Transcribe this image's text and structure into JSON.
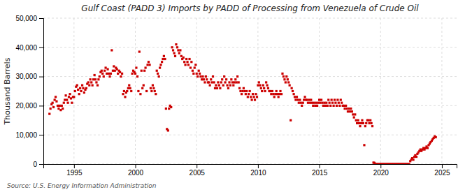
{
  "chart_data": {
    "type": "scatter",
    "title": "Gulf Coast (PADD 3) Imports by PADD of Processing from Venezuela of Crude Oil",
    "ylabel": "Thousand Barrels",
    "annotations": [
      "Source: U.S. Energy Information Administration"
    ],
    "color": "#cc0000",
    "marker": "square",
    "grid": true,
    "xlim": [
      1992.5,
      2026.2
    ],
    "xticks": [
      1995,
      2000,
      2005,
      2010,
      2015,
      2020,
      2025
    ],
    "ylim": [
      0,
      50000
    ],
    "yticks": [
      0,
      {
        "value": 10000,
        "label": "10,000"
      },
      {
        "value": 20000,
        "label": "20,000"
      },
      {
        "value": 30000,
        "label": "30,000"
      },
      {
        "value": 40000,
        "label": "40,000"
      },
      {
        "value": 50000,
        "label": "50,000"
      }
    ],
    "x": [
      1993.0,
      1993.08,
      1993.17,
      1993.25,
      1993.33,
      1993.42,
      1993.5,
      1993.58,
      1993.67,
      1993.75,
      1993.83,
      1993.92,
      1994.0,
      1994.08,
      1994.17,
      1994.25,
      1994.33,
      1994.42,
      1994.5,
      1994.58,
      1994.67,
      1994.75,
      1994.83,
      1994.92,
      1995.0,
      1995.08,
      1995.17,
      1995.25,
      1995.33,
      1995.42,
      1995.5,
      1995.58,
      1995.67,
      1995.75,
      1995.83,
      1995.92,
      1996.0,
      1996.08,
      1996.17,
      1996.25,
      1996.33,
      1996.42,
      1996.5,
      1996.58,
      1996.67,
      1996.75,
      1996.83,
      1996.92,
      1997.0,
      1997.08,
      1997.17,
      1997.25,
      1997.33,
      1997.42,
      1997.5,
      1997.58,
      1997.67,
      1997.75,
      1997.83,
      1997.92,
      1998.0,
      1998.08,
      1998.17,
      1998.25,
      1998.33,
      1998.42,
      1998.5,
      1998.58,
      1998.67,
      1998.75,
      1998.83,
      1998.92,
      1999.0,
      1999.08,
      1999.17,
      1999.25,
      1999.33,
      1999.42,
      1999.5,
      1999.58,
      1999.67,
      1999.75,
      1999.83,
      1999.92,
      2000.0,
      2000.08,
      2000.17,
      2000.25,
      2000.33,
      2000.42,
      2000.5,
      2000.58,
      2000.67,
      2000.75,
      2000.83,
      2000.92,
      2001.0,
      2001.08,
      2001.17,
      2001.25,
      2001.33,
      2001.42,
      2001.5,
      2001.58,
      2001.67,
      2001.75,
      2001.83,
      2001.92,
      2002.0,
      2002.08,
      2002.17,
      2002.25,
      2002.33,
      2002.42,
      2002.5,
      2002.58,
      2002.67,
      2002.75,
      2002.83,
      2002.92,
      2003.0,
      2003.08,
      2003.17,
      2003.25,
      2003.33,
      2003.42,
      2003.5,
      2003.58,
      2003.67,
      2003.75,
      2003.83,
      2003.92,
      2004.0,
      2004.08,
      2004.17,
      2004.25,
      2004.33,
      2004.42,
      2004.5,
      2004.58,
      2004.67,
      2004.75,
      2004.83,
      2004.92,
      2005.0,
      2005.08,
      2005.17,
      2005.25,
      2005.33,
      2005.42,
      2005.5,
      2005.58,
      2005.67,
      2005.75,
      2005.83,
      2005.92,
      2006.0,
      2006.08,
      2006.17,
      2006.25,
      2006.33,
      2006.42,
      2006.5,
      2006.58,
      2006.67,
      2006.75,
      2006.83,
      2006.92,
      2007.0,
      2007.08,
      2007.17,
      2007.25,
      2007.33,
      2007.42,
      2007.5,
      2007.58,
      2007.67,
      2007.75,
      2007.83,
      2007.92,
      2008.0,
      2008.08,
      2008.17,
      2008.25,
      2008.33,
      2008.42,
      2008.5,
      2008.58,
      2008.67,
      2008.75,
      2008.83,
      2008.92,
      2009.0,
      2009.08,
      2009.17,
      2009.25,
      2009.33,
      2009.42,
      2009.5,
      2009.58,
      2009.67,
      2009.75,
      2009.83,
      2009.92,
      2010.0,
      2010.08,
      2010.17,
      2010.25,
      2010.33,
      2010.42,
      2010.5,
      2010.58,
      2010.67,
      2010.75,
      2010.83,
      2010.92,
      2011.0,
      2011.08,
      2011.17,
      2011.25,
      2011.33,
      2011.42,
      2011.5,
      2011.58,
      2011.67,
      2011.75,
      2011.83,
      2011.92,
      2012.0,
      2012.08,
      2012.17,
      2012.25,
      2012.33,
      2012.42,
      2012.5,
      2012.58,
      2012.67,
      2012.75,
      2012.83,
      2012.92,
      2013.0,
      2013.08,
      2013.17,
      2013.25,
      2013.33,
      2013.42,
      2013.5,
      2013.58,
      2013.67,
      2013.75,
      2013.83,
      2013.92,
      2014.0,
      2014.08,
      2014.17,
      2014.25,
      2014.33,
      2014.42,
      2014.5,
      2014.58,
      2014.67,
      2014.75,
      2014.83,
      2014.92,
      2015.0,
      2015.08,
      2015.17,
      2015.25,
      2015.33,
      2015.42,
      2015.5,
      2015.58,
      2015.67,
      2015.75,
      2015.83,
      2015.92,
      2016.0,
      2016.08,
      2016.17,
      2016.25,
      2016.33,
      2016.42,
      2016.5,
      2016.58,
      2016.67,
      2016.75,
      2016.83,
      2016.92,
      2017.0,
      2017.08,
      2017.17,
      2017.25,
      2017.33,
      2017.42,
      2017.5,
      2017.58,
      2017.67,
      2017.75,
      2017.83,
      2017.92,
      2018.0,
      2018.08,
      2018.17,
      2018.25,
      2018.33,
      2018.42,
      2018.5,
      2018.58,
      2018.67,
      2018.75,
      2018.83,
      2018.92,
      2019.0,
      2019.08,
      2019.17,
      2019.25,
      2019.33,
      2019.42,
      2019.5,
      2019.58,
      2019.67,
      2019.75,
      2019.83,
      2019.92,
      2020.0,
      2020.08,
      2020.17,
      2020.25,
      2020.33,
      2020.42,
      2020.5,
      2020.58,
      2020.67,
      2020.75,
      2020.83,
      2020.92,
      2021.0,
      2021.08,
      2021.17,
      2021.25,
      2021.33,
      2021.42,
      2021.5,
      2021.58,
      2021.67,
      2021.75,
      2021.83,
      2021.92,
      2022.0,
      2022.08,
      2022.17,
      2022.25,
      2022.33,
      2022.42,
      2022.5,
      2022.58,
      2022.67,
      2022.75,
      2022.83,
      2022.92,
      2023.0,
      2023.08,
      2023.17,
      2023.25,
      2023.33,
      2023.42,
      2023.5,
      2023.58,
      2023.67,
      2023.75,
      2023.83,
      2023.92,
      2024.0,
      2024.08,
      2024.17,
      2024.25,
      2024.33,
      2024.42,
      2024.5
    ],
    "values": [
      17200,
      19000,
      20500,
      21000,
      19500,
      22000,
      23000,
      21500,
      20000,
      19000,
      20000,
      18500,
      20000,
      19000,
      21000,
      22000,
      23500,
      22000,
      21000,
      23000,
      24000,
      22500,
      21000,
      23000,
      23000,
      25000,
      26500,
      27000,
      25500,
      24000,
      26000,
      25000,
      27000,
      26000,
      24500,
      25500,
      26000,
      27500,
      28000,
      27000,
      29000,
      28000,
      27000,
      29000,
      30500,
      29000,
      28000,
      27000,
      29000,
      30000,
      31500,
      32000,
      31000,
      30000,
      32000,
      33000,
      31000,
      32500,
      31000,
      30000,
      31000,
      39000,
      32000,
      33500,
      32000,
      33000,
      32500,
      31000,
      32000,
      31500,
      30000,
      31000,
      24000,
      25000,
      23000,
      24500,
      25000,
      26000,
      27000,
      26000,
      25000,
      31000,
      32000,
      31500,
      31000,
      33000,
      30000,
      25000,
      38500,
      24000,
      32000,
      26000,
      27000,
      32000,
      33000,
      25000,
      34000,
      35000,
      34000,
      26000,
      25000,
      27000,
      26000,
      25000,
      24000,
      32000,
      31000,
      30000,
      33000,
      34000,
      35000,
      36000,
      37000,
      36000,
      19000,
      12000,
      11500,
      19000,
      20000,
      19500,
      40000,
      39000,
      38000,
      37000,
      41000,
      40000,
      39000,
      38000,
      39000,
      37000,
      36000,
      36500,
      35000,
      34000,
      36000,
      35000,
      34000,
      36000,
      33000,
      35000,
      32000,
      31000,
      33000,
      34000,
      31000,
      30000,
      32000,
      31000,
      30000,
      29000,
      30000,
      29000,
      28000,
      30000,
      29000,
      28000,
      28000,
      27000,
      29000,
      28000,
      30000,
      28000,
      26000,
      27000,
      26000,
      28000,
      27000,
      26000,
      28000,
      29000,
      27000,
      30000,
      28000,
      29000,
      27000,
      26000,
      28000,
      27000,
      29000,
      28000,
      27000,
      28000,
      29000,
      28000,
      30000,
      28000,
      26000,
      25000,
      24000,
      25000,
      26000,
      25000,
      24000,
      25000,
      23000,
      24000,
      25000,
      23000,
      22000,
      24000,
      23000,
      22000,
      24000,
      23000,
      27000,
      28000,
      27000,
      26000,
      25000,
      27000,
      26000,
      25000,
      28000,
      27000,
      26000,
      25000,
      25000,
      24000,
      25000,
      24000,
      23000,
      24000,
      25000,
      24000,
      23000,
      24000,
      25000,
      24000,
      31000,
      30000,
      29000,
      28000,
      30000,
      29000,
      28000,
      27000,
      15000,
      26000,
      25000,
      24000,
      23000,
      22000,
      23000,
      22000,
      21000,
      22000,
      21000,
      20000,
      21000,
      22000,
      23000,
      22000,
      22000,
      21000,
      22000,
      21000,
      22000,
      21000,
      20000,
      21000,
      20000,
      21000,
      20000,
      21000,
      22000,
      21000,
      22000,
      21000,
      20000,
      21000,
      20000,
      21000,
      20000,
      22000,
      21000,
      20000,
      22000,
      21000,
      20000,
      22000,
      21000,
      20000,
      22000,
      21000,
      20000,
      22000,
      21000,
      20000,
      20000,
      19000,
      20000,
      19000,
      18000,
      19000,
      18000,
      19000,
      18000,
      17000,
      16000,
      17000,
      15000,
      14000,
      15000,
      14000,
      13000,
      14000,
      15000,
      14000,
      6500,
      13000,
      14000,
      15000,
      15000,
      14000,
      15000,
      14000,
      13000,
      500,
      400,
      0,
      0,
      0,
      0,
      0,
      0,
      0,
      0,
      0,
      0,
      0,
      0,
      0,
      0,
      0,
      0,
      0,
      0,
      0,
      0,
      0,
      0,
      0,
      0,
      0,
      0,
      0,
      0,
      0,
      0,
      0,
      0,
      0,
      0,
      1000,
      1500,
      2000,
      1500,
      2500,
      3000,
      2500,
      3500,
      4000,
      4500,
      5000,
      4500,
      5000,
      5500,
      5000,
      5500,
      6000,
      5500,
      6500,
      7000,
      7500,
      8000,
      8500,
      9000,
      9500,
      9200
    ]
  }
}
